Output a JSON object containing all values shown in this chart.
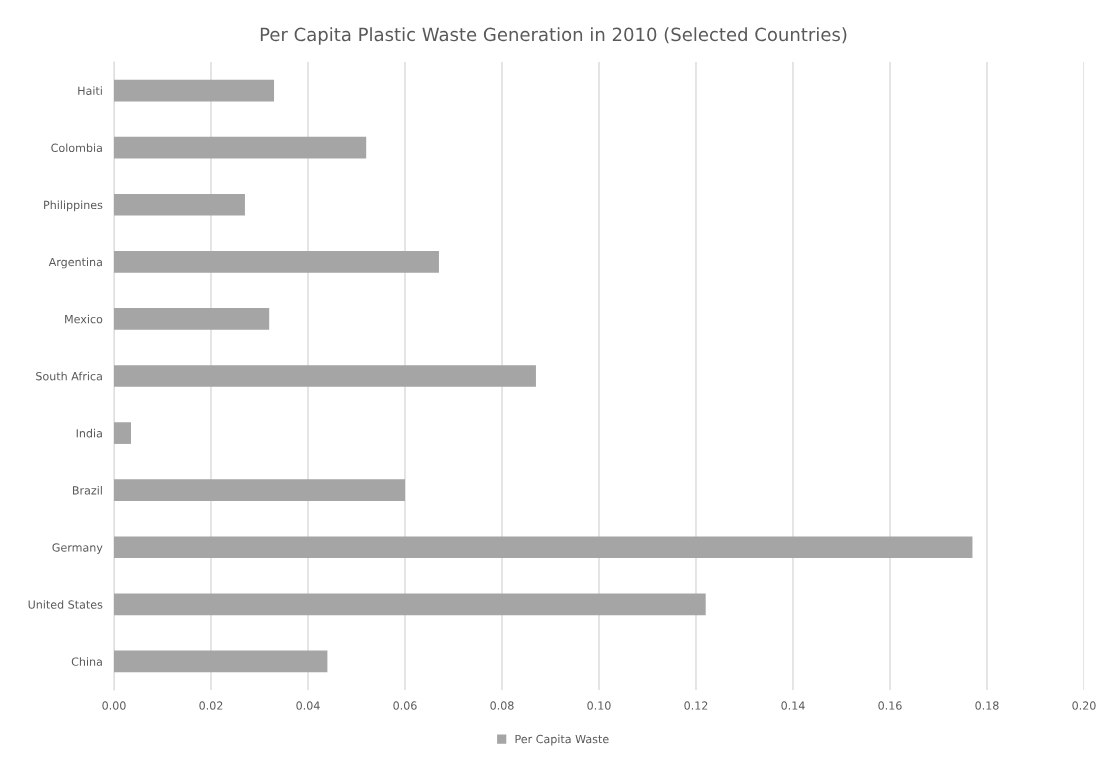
{
  "chart_data": {
    "type": "bar",
    "orientation": "horizontal",
    "title": "Per Capita Plastic Waste Generation in 2010 (Selected Countries)",
    "categories": [
      "Haiti",
      "Colombia",
      "Philippines",
      "Argentina",
      "Mexico",
      "South Africa",
      "India",
      "Brazil",
      "Germany",
      "United States",
      "China"
    ],
    "series": [
      {
        "name": "Per Capita Waste",
        "color": "#a5a5a5",
        "values": [
          0.033,
          0.052,
          0.027,
          0.067,
          0.032,
          0.087,
          0.0035,
          0.06,
          0.177,
          0.122,
          0.044
        ]
      }
    ],
    "xlim": [
      0,
      0.2
    ],
    "xticks": [
      {
        "value": 0,
        "label": "0.00"
      },
      {
        "value": 0.02,
        "label": "0.02"
      },
      {
        "value": 0.04,
        "label": "0.04"
      },
      {
        "value": 0.06,
        "label": "0.06"
      },
      {
        "value": 0.08,
        "label": "0.08"
      },
      {
        "value": 0.1,
        "label": "0.10"
      },
      {
        "value": 0.12,
        "label": "0.12"
      },
      {
        "value": 0.14,
        "label": "0.14"
      },
      {
        "value": 0.16,
        "label": "0.16"
      },
      {
        "value": 0.18,
        "label": "0.18"
      },
      {
        "value": 0.2,
        "label": "0.20"
      }
    ],
    "grid": "x",
    "legend": "bottom"
  }
}
